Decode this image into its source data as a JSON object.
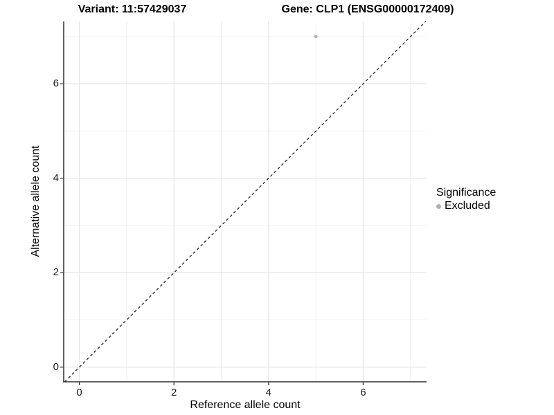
{
  "chart_data": {
    "type": "scatter",
    "title_left": "Variant: 11:57429037",
    "title_right": "Gene: CLP1 (ENSG00000172409)",
    "xlabel": "Reference allele count",
    "ylabel": "Alternative allele count",
    "xlim": [
      -0.33,
      7.34
    ],
    "ylim": [
      -0.31,
      7.32
    ],
    "x_ticks": [
      0,
      2,
      4,
      6
    ],
    "y_ticks": [
      0,
      2,
      4,
      6
    ],
    "x_minor_ticks": [
      1,
      3,
      5,
      7
    ],
    "y_minor_ticks": [
      1,
      3,
      5,
      7
    ],
    "grid": "major+minor",
    "series": [
      {
        "name": "Excluded",
        "color": "#b0b0b0",
        "points": [
          {
            "x": 5,
            "y": 7
          }
        ]
      }
    ],
    "reference_line": {
      "type": "identity",
      "slope": 1,
      "intercept": 0,
      "style": "dashed",
      "color": "#000000"
    },
    "legend": {
      "title": "Significance",
      "position": "right",
      "entries": [
        {
          "label": "Excluded",
          "color": "#b0b0b0"
        }
      ]
    }
  },
  "colors": {
    "background": "#ffffff",
    "grid_major": "#e5e5e5",
    "grid_minor": "#f0f0f0",
    "axis_line": "#2d2d2d",
    "tick_text": "#1a1a1a",
    "point_excluded": "#b0b0b0"
  }
}
